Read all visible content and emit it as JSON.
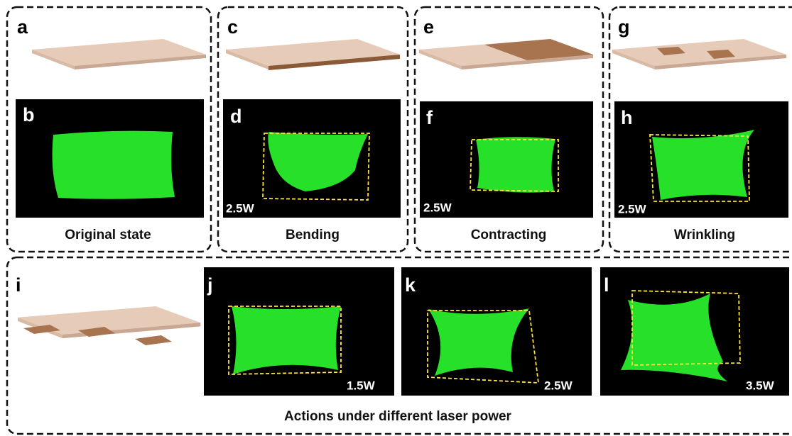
{
  "top_row": [
    {
      "sketch_label": "a",
      "image_label": "b",
      "caption": "Original state"
    },
    {
      "sketch_label": "c",
      "image_label": "d",
      "power": "2.5W",
      "caption": "Bending"
    },
    {
      "sketch_label": "e",
      "image_label": "f",
      "power": "2.5W",
      "caption": "Contracting"
    },
    {
      "sketch_label": "g",
      "image_label": "h",
      "power": "2.5W",
      "caption": "Wrinkling"
    }
  ],
  "bottom_row": {
    "sketch_label": "i",
    "images": [
      {
        "label": "j",
        "power": "1.5W"
      },
      {
        "label": "k",
        "power": "2.5W"
      },
      {
        "label": "l",
        "power": "3.5W"
      }
    ],
    "caption": "Actions under different laser power"
  }
}
